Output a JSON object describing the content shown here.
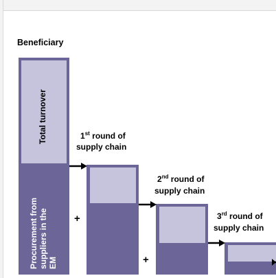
{
  "beneficiary": {
    "title": "Beneficiary",
    "upper_label": "Total turnover",
    "lower_label": [
      "Procurement from",
      "suppliers in the",
      "EM"
    ]
  },
  "rounds": [
    {
      "ordinal": "1",
      "suffix": "st",
      "line1_rest": " round of",
      "line2": "supply chain"
    },
    {
      "ordinal": "2",
      "suffix": "nd",
      "line1_rest": " round of",
      "line2": "supply chain"
    },
    {
      "ordinal": "3",
      "suffix": "rd",
      "line1_rest": " round of",
      "line2": "supply chain"
    }
  ],
  "plus_sign": "+",
  "colors": {
    "dark": "#6b6598",
    "light": "#c6c3dd",
    "arrow": "#000000"
  }
}
